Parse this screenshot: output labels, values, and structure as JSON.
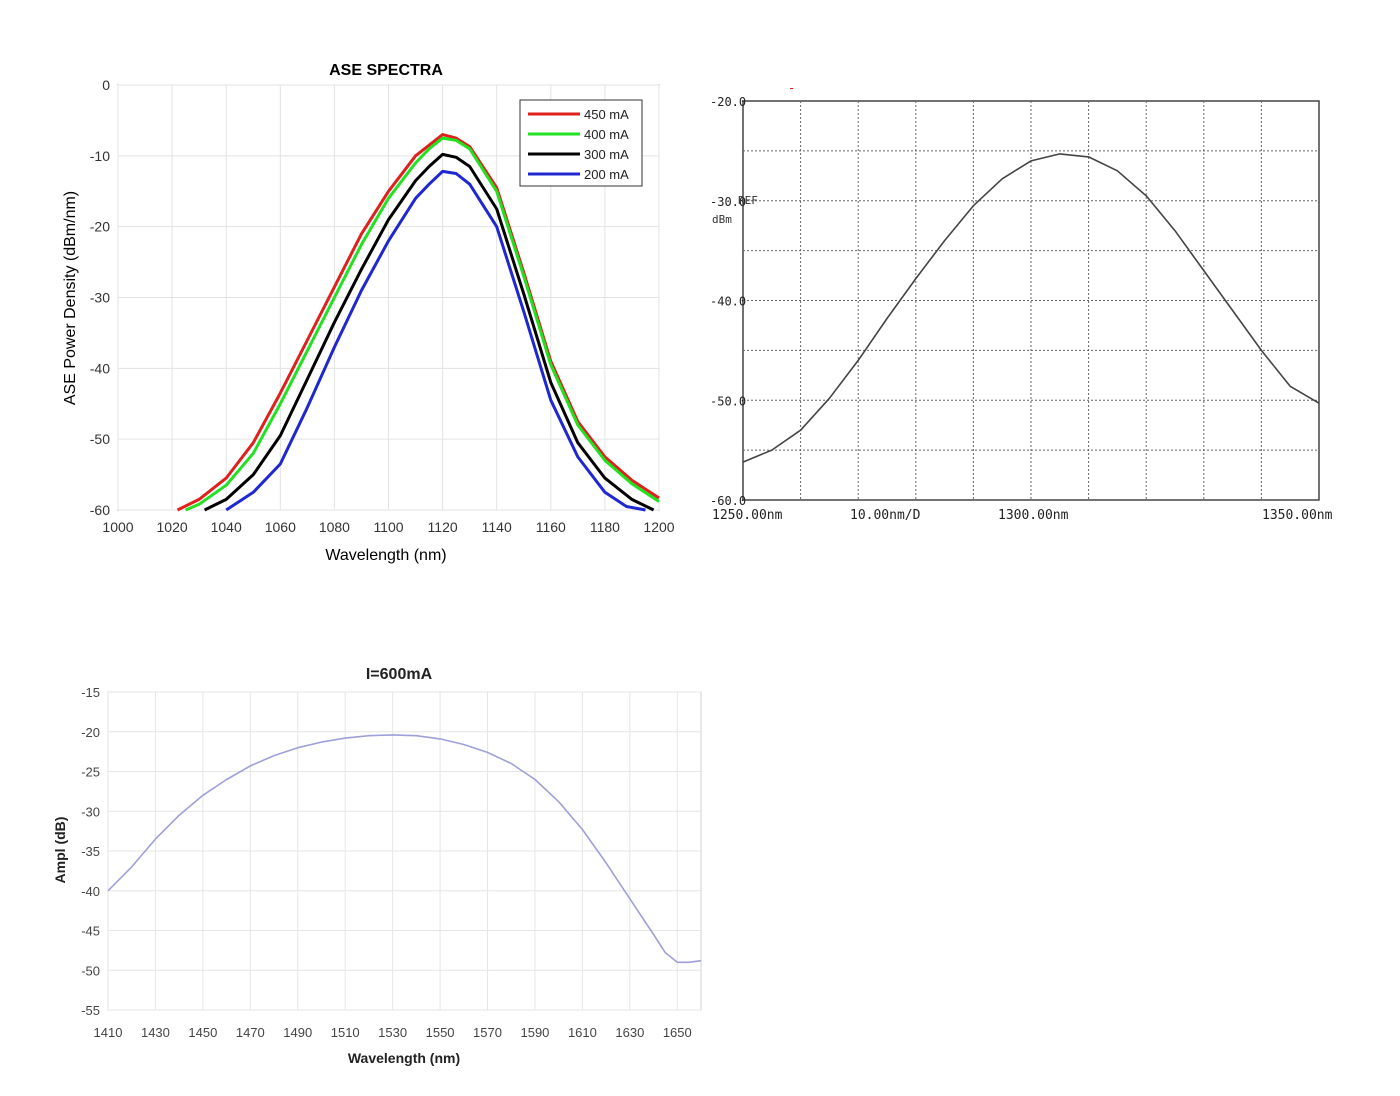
{
  "chart_data": [
    {
      "id": "ase-spectra",
      "type": "line",
      "title": "ASE SPECTRA",
      "xlabel": "Wavelength (nm)",
      "ylabel": "ASE Power Density (dBm/nm)",
      "xlim": [
        1000,
        1200
      ],
      "ylim": [
        -60,
        0
      ],
      "xticks": [
        "1000",
        "1020",
        "1040",
        "1060",
        "1080",
        "1100",
        "1120",
        "1140",
        "1160",
        "1180",
        "1200"
      ],
      "yticks": [
        "0",
        "-10",
        "-20",
        "-30",
        "-40",
        "-50",
        "-60"
      ],
      "grid": true,
      "legend_position": "top-right",
      "series": [
        {
          "name": "450 mA",
          "color": "#e0201c",
          "x": [
            1022,
            1030,
            1040,
            1050,
            1060,
            1070,
            1080,
            1090,
            1100,
            1110,
            1115,
            1120,
            1125,
            1130,
            1140,
            1150,
            1160,
            1170,
            1180,
            1190,
            1200
          ],
          "y": [
            -60,
            -58.5,
            -55.5,
            -50.5,
            -43.5,
            -36,
            -28.5,
            -21,
            -15,
            -10,
            -8.5,
            -7,
            -7.5,
            -8.7,
            -14.5,
            -26.5,
            -39,
            -47.5,
            -52.5,
            -55.8,
            -58.3
          ]
        },
        {
          "name": "400 mA",
          "color": "#22e022",
          "x": [
            1025,
            1030,
            1040,
            1050,
            1060,
            1070,
            1080,
            1090,
            1100,
            1110,
            1115,
            1120,
            1125,
            1130,
            1140,
            1150,
            1160,
            1170,
            1180,
            1190,
            1200
          ],
          "y": [
            -60,
            -59.2,
            -56.5,
            -52,
            -45,
            -37.5,
            -30,
            -22.5,
            -16,
            -11,
            -9,
            -7.5,
            -7.8,
            -9,
            -15,
            -27,
            -39.5,
            -48,
            -53,
            -56.3,
            -58.8
          ]
        },
        {
          "name": "300 mA",
          "color": "#000000",
          "x": [
            1032,
            1040,
            1050,
            1060,
            1070,
            1080,
            1090,
            1100,
            1110,
            1115,
            1120,
            1125,
            1130,
            1140,
            1150,
            1160,
            1170,
            1180,
            1190,
            1198
          ],
          "y": [
            -60,
            -58.5,
            -55,
            -49.5,
            -41.5,
            -33.5,
            -26,
            -19,
            -13.5,
            -11.5,
            -9.8,
            -10.2,
            -11.5,
            -17.5,
            -29.5,
            -42,
            -50.5,
            -55.5,
            -58.5,
            -60
          ]
        },
        {
          "name": "200 mA",
          "color": "#1f28d0",
          "x": [
            1040,
            1050,
            1060,
            1070,
            1080,
            1090,
            1100,
            1110,
            1115,
            1120,
            1125,
            1130,
            1140,
            1150,
            1160,
            1170,
            1180,
            1188,
            1195
          ],
          "y": [
            -60,
            -57.5,
            -53.5,
            -45.5,
            -37,
            -29,
            -22,
            -16,
            -14,
            -12.2,
            -12.5,
            -14,
            -20,
            -32,
            -44.5,
            -52.5,
            -57.5,
            -59.5,
            -60
          ]
        }
      ]
    },
    {
      "id": "osa-trace",
      "type": "line",
      "title": "",
      "marker_text": "-",
      "xlim": [
        1250,
        1350
      ],
      "ylim": [
        -60,
        -20
      ],
      "x_tick_labels": {
        "start": "1250.00nm",
        "div": "10.00nm/D",
        "center": "1300.00nm",
        "end": "1350.00nm"
      },
      "y_tick_labels": [
        "-20.0",
        "-30.0",
        "-40.0",
        "-50.0",
        "-60.0"
      ],
      "ref_label": "REF",
      "unit_label": "dBm",
      "grid": true,
      "series": [
        {
          "name": "trace",
          "color": "#444444",
          "x": [
            1250,
            1255,
            1260,
            1265,
            1270,
            1275,
            1280,
            1285,
            1290,
            1295,
            1300,
            1305,
            1310,
            1315,
            1320,
            1325,
            1330,
            1335,
            1340,
            1345,
            1350
          ],
          "y": [
            -56.2,
            -55.0,
            -53.0,
            -49.8,
            -46.0,
            -41.8,
            -37.8,
            -34.0,
            -30.5,
            -27.8,
            -26.0,
            -25.3,
            -25.6,
            -27.0,
            -29.5,
            -33.0,
            -37.0,
            -41.0,
            -45.0,
            -48.6,
            -50.3
          ]
        }
      ]
    },
    {
      "id": "ampl-600ma",
      "type": "line",
      "title": "I=600mA",
      "xlabel": "Wavelength (nm)",
      "ylabel": "Ampl (dB)",
      "xlim": [
        1410,
        1660
      ],
      "ylim": [
        -55,
        -15
      ],
      "xticks": [
        "1410",
        "1430",
        "1450",
        "1470",
        "1490",
        "1510",
        "1530",
        "1550",
        "1570",
        "1590",
        "1610",
        "1630",
        "1650"
      ],
      "yticks": [
        "-15",
        "-20",
        "-25",
        "-30",
        "-35",
        "-40",
        "-45",
        "-50",
        "-55"
      ],
      "grid": true,
      "series": [
        {
          "name": "I=600mA",
          "color": "#9ea0d8",
          "x": [
            1410,
            1415,
            1420,
            1430,
            1440,
            1450,
            1460,
            1470,
            1480,
            1490,
            1500,
            1510,
            1520,
            1530,
            1540,
            1550,
            1560,
            1570,
            1580,
            1590,
            1600,
            1610,
            1620,
            1630,
            1640,
            1645,
            1650,
            1655,
            1660
          ],
          "y": [
            -40,
            -38.5,
            -37,
            -33.5,
            -30.5,
            -28,
            -26,
            -24.3,
            -23,
            -22,
            -21.3,
            -20.8,
            -20.5,
            -20.4,
            -20.5,
            -20.9,
            -21.6,
            -22.6,
            -24,
            -26,
            -28.8,
            -32.3,
            -36.5,
            -41,
            -45.5,
            -47.8,
            -49,
            -49,
            -48.8
          ]
        }
      ]
    }
  ]
}
